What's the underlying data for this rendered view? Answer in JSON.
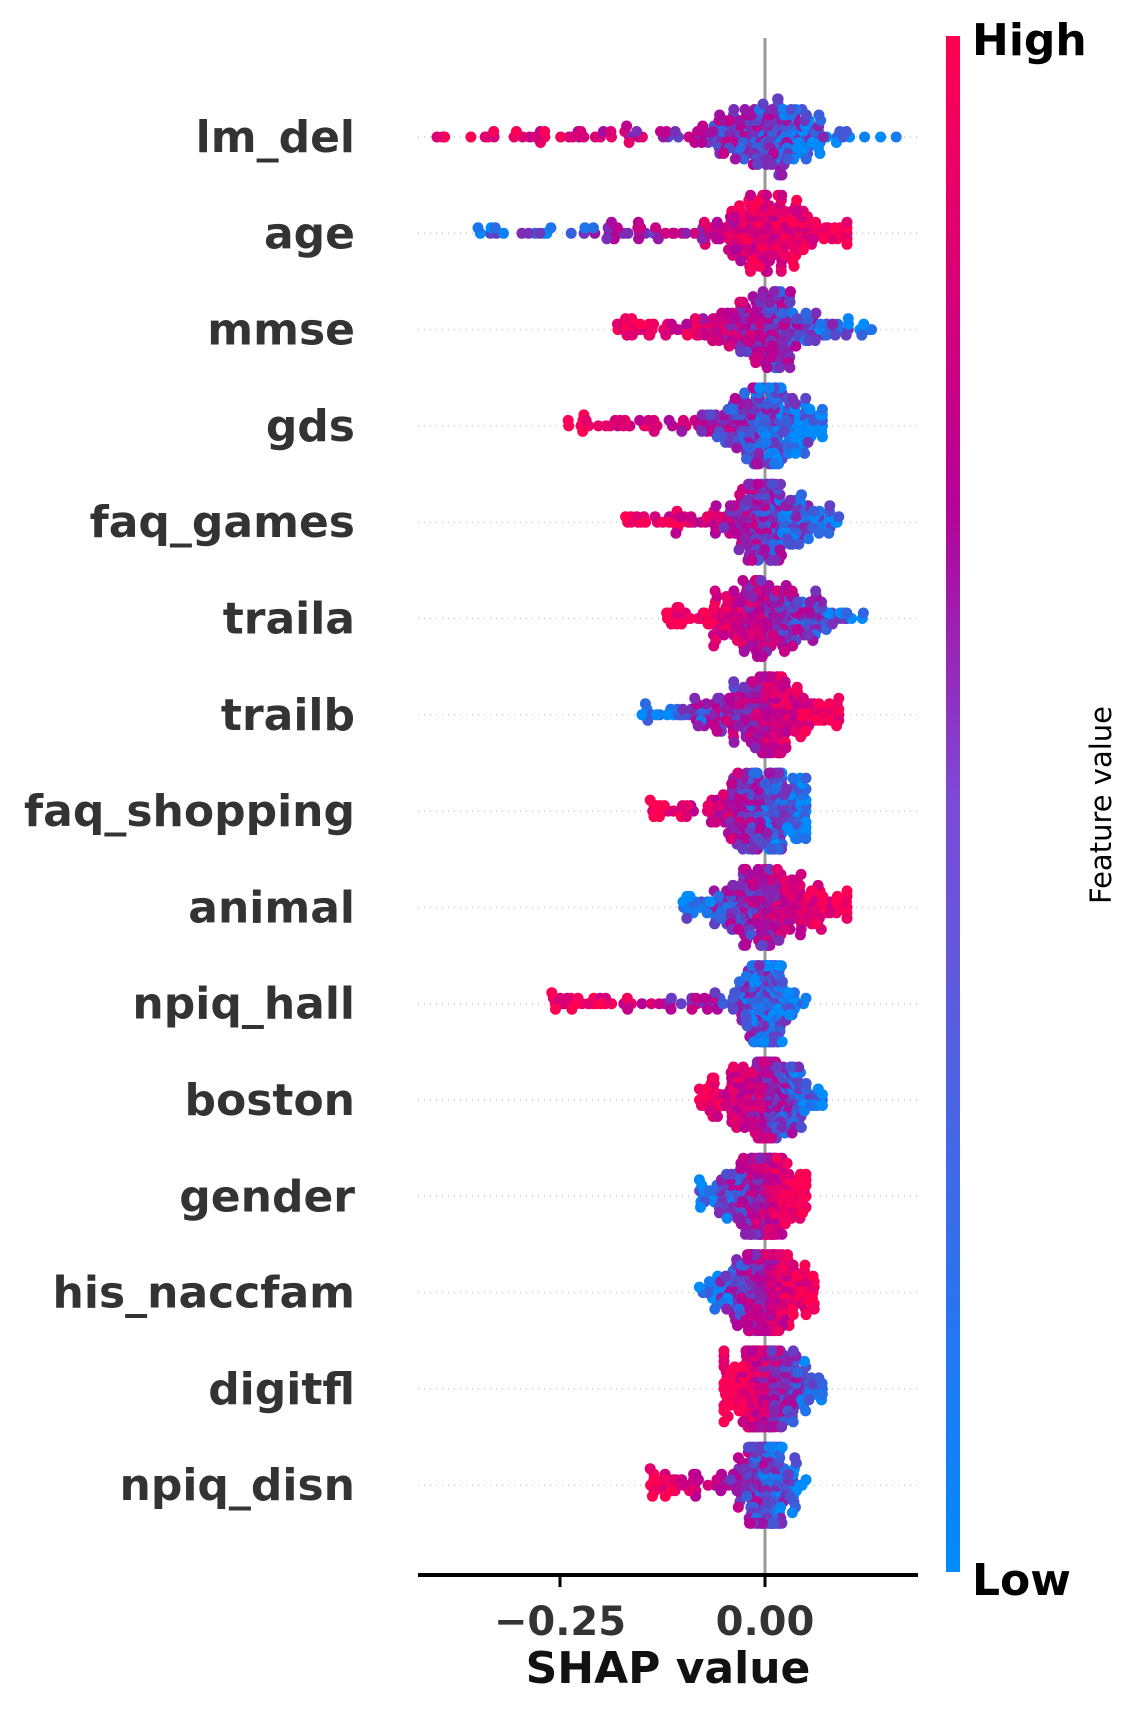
{
  "chart_data": {
    "type": "scatter",
    "subtype": "shap-beeswarm",
    "xlabel": "SHAP value",
    "xticks": [
      {
        "value": -0.25,
        "label": "−0.25"
      },
      {
        "value": 0.0,
        "label": "0.00"
      }
    ],
    "xlim": [
      -0.43,
      0.19
    ],
    "zero_line": true,
    "colorbar": {
      "title": "Feature value",
      "high_label": "High",
      "low_label": "Low",
      "high_color": "#ff0052",
      "mid_color": "#b60096",
      "low_color": "#008bfb"
    },
    "features": [
      {
        "name": "lm_del",
        "min": -0.4,
        "max": 0.16,
        "low_side": "right",
        "spread": 0.045
      },
      {
        "name": "age",
        "min": -0.35,
        "max": 0.1,
        "low_side": "left",
        "spread": 0.04
      },
      {
        "name": "mmse",
        "min": -0.18,
        "max": 0.13,
        "low_side": "right",
        "spread": 0.04
      },
      {
        "name": "gds",
        "min": -0.24,
        "max": 0.07,
        "low_side": "right",
        "spread": 0.035
      },
      {
        "name": "faq_games",
        "min": -0.17,
        "max": 0.09,
        "low_side": "right",
        "spread": 0.035
      },
      {
        "name": "traila",
        "min": -0.12,
        "max": 0.12,
        "low_side": "right",
        "spread": 0.04
      },
      {
        "name": "trailb",
        "min": -0.15,
        "max": 0.09,
        "low_side": "left",
        "spread": 0.035
      },
      {
        "name": "faq_shopping",
        "min": -0.14,
        "max": 0.05,
        "low_side": "right",
        "spread": 0.03
      },
      {
        "name": "animal",
        "min": -0.1,
        "max": 0.1,
        "low_side": "left",
        "spread": 0.035
      },
      {
        "name": "npiq_hall",
        "min": -0.26,
        "max": 0.05,
        "low_side": "right",
        "spread": 0.015
      },
      {
        "name": "boston",
        "min": -0.08,
        "max": 0.07,
        "low_side": "right",
        "spread": 0.03
      },
      {
        "name": "gender",
        "min": -0.08,
        "max": 0.05,
        "low_side": "left",
        "spread": 0.025
      },
      {
        "name": "his_naccfam",
        "min": -0.08,
        "max": 0.06,
        "low_side": "left",
        "spread": 0.025
      },
      {
        "name": "digitfl",
        "min": -0.05,
        "max": 0.07,
        "low_side": "right",
        "spread": 0.025
      },
      {
        "name": "npiq_disn",
        "min": -0.14,
        "max": 0.05,
        "low_side": "right",
        "spread": 0.015
      }
    ]
  }
}
